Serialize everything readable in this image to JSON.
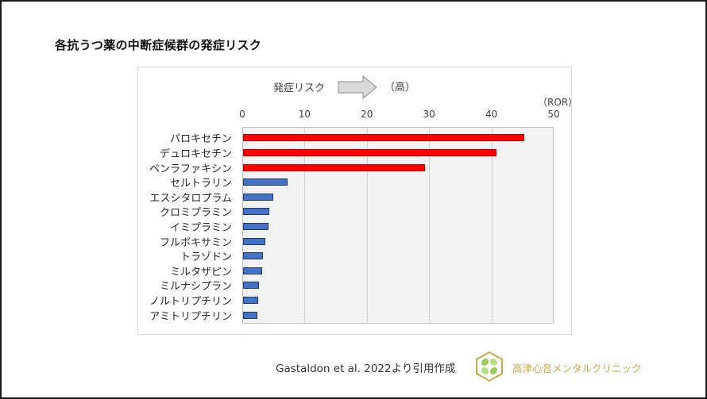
{
  "title": "各抗うつ薬の中断症候群の発症リスク",
  "annotation": {
    "risk_label": "発症リスク",
    "risk_high": "（高）",
    "arrow_icon": "right-arrow-icon"
  },
  "citation": "Gastaldon et al. 2022より引用作成",
  "clinic": {
    "name": "高津心音メンタルクリニック",
    "logo_icon": "clover-hexagon-logo-icon",
    "logo_color": "#c8a848"
  },
  "colors": {
    "high_risk": "#ff0000",
    "low_risk": "#4472c4",
    "plot_bg": "#f2f2f2"
  },
  "chart_data": {
    "type": "bar",
    "orientation": "horizontal",
    "title": "各抗うつ薬の中断症候群の発症リスク",
    "xlabel": "（ROR）",
    "ylabel": "",
    "xlim": [
      0,
      50
    ],
    "x_ticks": [
      "0",
      "10",
      "20",
      "30",
      "40",
      "50"
    ],
    "x_axis_position": "top",
    "grid": true,
    "legend": null,
    "annotations": [
      "発症リスク →（高）"
    ],
    "categories": [
      "パロキセチン",
      "デュロキセチン",
      "ベンラファキシン",
      "セルトラリン",
      "エスシタロプラム",
      "クロミプラミン",
      "イミプラミン",
      "フルボキサミン",
      "トラゾドン",
      "ミルタザピン",
      "ミルナシプラン",
      "ノルトリプチリン",
      "アミトリプチリン"
    ],
    "values": [
      45.1,
      40.7,
      29.2,
      7.2,
      4.8,
      4.2,
      4.1,
      3.6,
      3.2,
      3.1,
      2.5,
      2.4,
      2.3
    ],
    "bar_colors": [
      "#ff0000",
      "#ff0000",
      "#ff0000",
      "#4472c4",
      "#4472c4",
      "#4472c4",
      "#4472c4",
      "#4472c4",
      "#4472c4",
      "#4472c4",
      "#4472c4",
      "#4472c4",
      "#4472c4"
    ]
  }
}
